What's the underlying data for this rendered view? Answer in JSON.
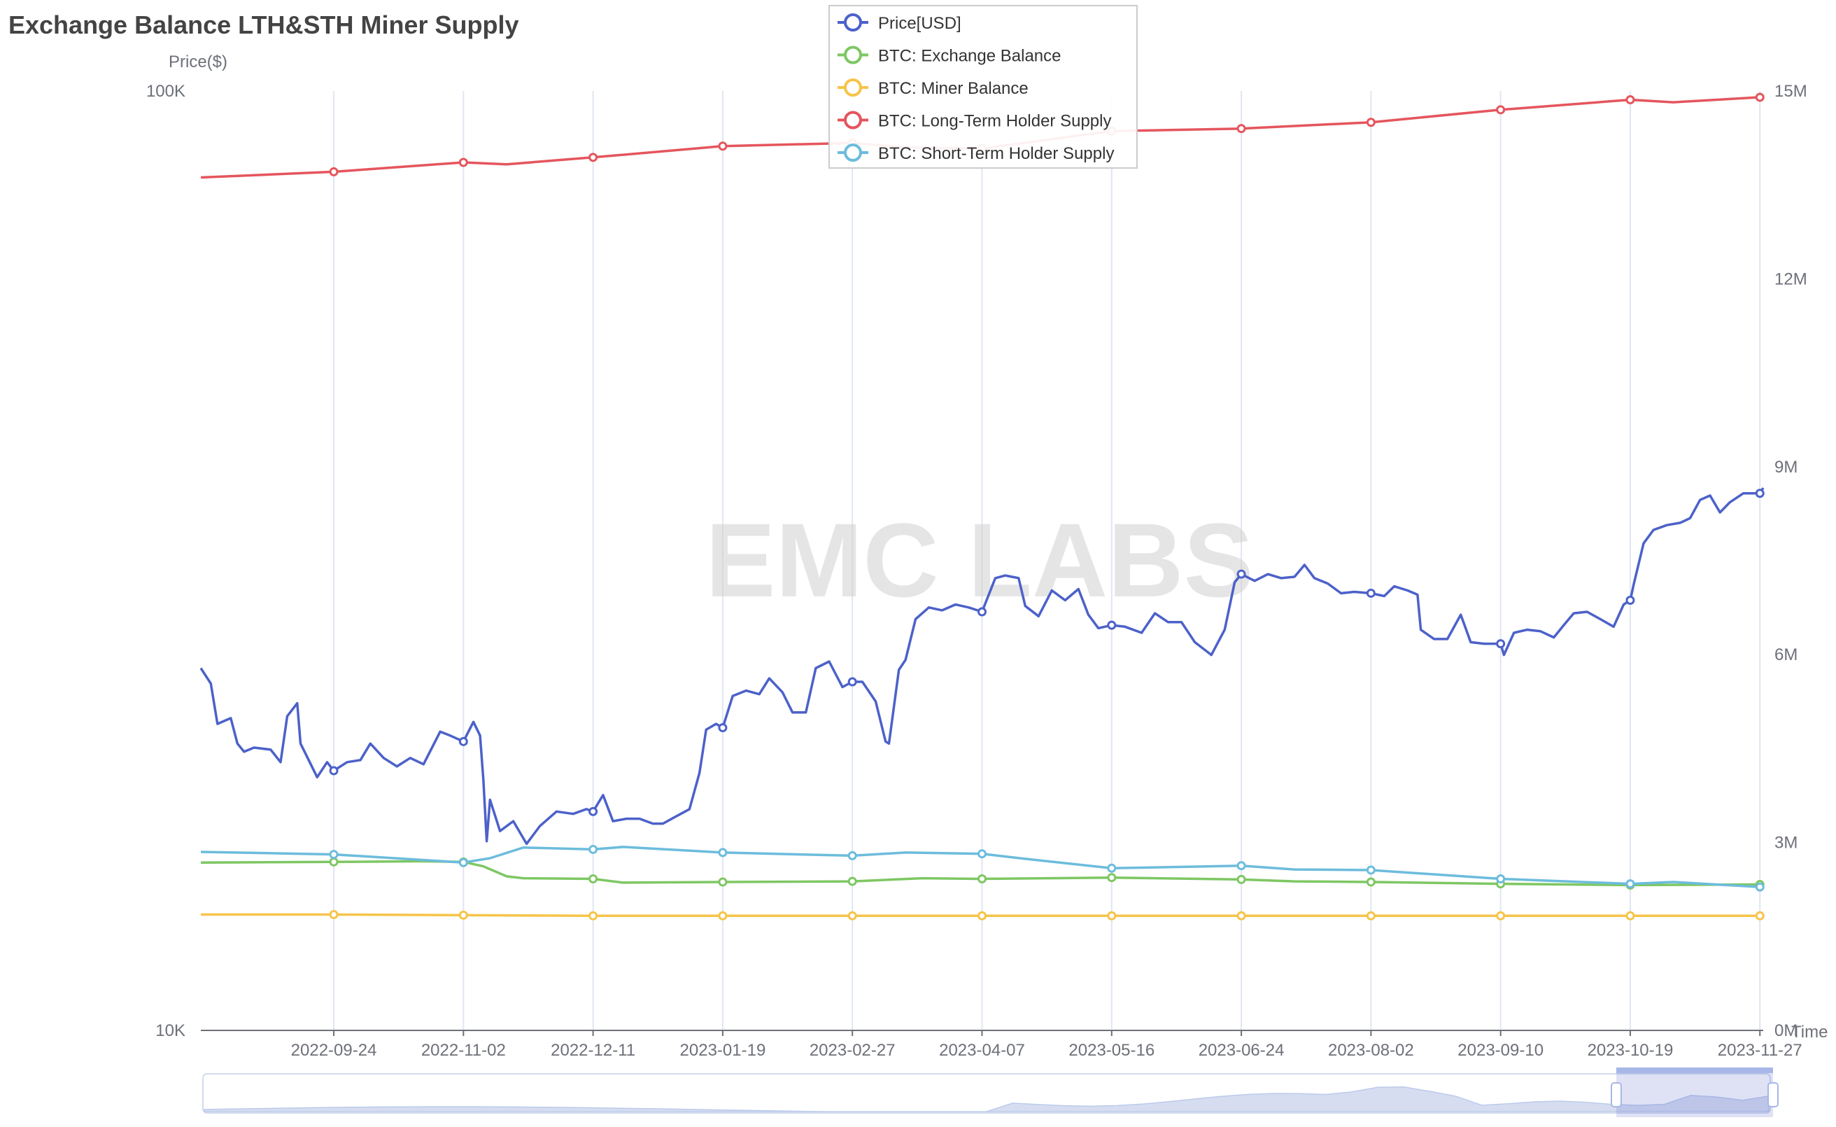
{
  "title": "Exchange Balance LTH&STH Miner Supply",
  "watermark": "EMC LABS",
  "colors": {
    "price": "#4c61c9",
    "exchange": "#7ec763",
    "miner": "#f6c44a",
    "lth": "#e5555d",
    "sth": "#6cbcdc",
    "grid": "#e0e6f1",
    "axis": "#6e7079"
  },
  "chart_data": {
    "type": "line",
    "title": "Exchange Balance LTH&STH Miner Supply",
    "y_left": {
      "label": "Price($)",
      "scale": "log",
      "range": [
        10000,
        100000
      ],
      "tick_labels": [
        "10K",
        "100K"
      ]
    },
    "y_right": {
      "label": "",
      "range": [
        0,
        15000000
      ],
      "tick_labels": [
        "0M",
        "3M",
        "6M",
        "9M",
        "12M",
        "15M"
      ]
    },
    "x": {
      "label": "Time",
      "start": "2022-08-15",
      "end": "2023-11-28",
      "tick_labels": [
        "2022-09-24",
        "2022-11-02",
        "2022-12-11",
        "2023-01-19",
        "2023-02-27",
        "2023-04-07",
        "2023-05-16",
        "2023-06-24",
        "2023-08-02",
        "2023-09-10",
        "2023-10-19",
        "2023-11-27"
      ]
    },
    "grid": "vertical",
    "legend_position": "top-center",
    "series": [
      {
        "name": "Price[USD]",
        "axis": "left",
        "color_key": "price",
        "points": [
          [
            "2022-08-15",
            24300
          ],
          [
            "2022-08-18",
            23400
          ],
          [
            "2022-08-20",
            21200
          ],
          [
            "2022-08-24",
            21500
          ],
          [
            "2022-08-26",
            20200
          ],
          [
            "2022-08-28",
            19800
          ],
          [
            "2022-08-31",
            20000
          ],
          [
            "2022-09-05",
            19900
          ],
          [
            "2022-09-08",
            19300
          ],
          [
            "2022-09-10",
            21600
          ],
          [
            "2022-09-13",
            22300
          ],
          [
            "2022-09-14",
            20200
          ],
          [
            "2022-09-19",
            18600
          ],
          [
            "2022-09-22",
            19300
          ],
          [
            "2022-09-24",
            18900
          ],
          [
            "2022-09-28",
            19300
          ],
          [
            "2022-10-02",
            19400
          ],
          [
            "2022-10-05",
            20200
          ],
          [
            "2022-10-09",
            19500
          ],
          [
            "2022-10-13",
            19100
          ],
          [
            "2022-10-17",
            19500
          ],
          [
            "2022-10-21",
            19200
          ],
          [
            "2022-10-26",
            20800
          ],
          [
            "2022-10-29",
            20600
          ],
          [
            "2022-11-02",
            20300
          ],
          [
            "2022-11-05",
            21300
          ],
          [
            "2022-11-07",
            20600
          ],
          [
            "2022-11-08",
            18500
          ],
          [
            "2022-11-09",
            15900
          ],
          [
            "2022-11-10",
            17600
          ],
          [
            "2022-11-13",
            16300
          ],
          [
            "2022-11-17",
            16700
          ],
          [
            "2022-11-21",
            15800
          ],
          [
            "2022-11-25",
            16500
          ],
          [
            "2022-11-30",
            17100
          ],
          [
            "2022-12-05",
            17000
          ],
          [
            "2022-12-09",
            17200
          ],
          [
            "2022-12-11",
            17100
          ],
          [
            "2022-12-14",
            17800
          ],
          [
            "2022-12-17",
            16700
          ],
          [
            "2022-12-21",
            16800
          ],
          [
            "2022-12-25",
            16800
          ],
          [
            "2022-12-29",
            16600
          ],
          [
            "2023-01-01",
            16600
          ],
          [
            "2023-01-05",
            16900
          ],
          [
            "2023-01-09",
            17200
          ],
          [
            "2023-01-12",
            18800
          ],
          [
            "2023-01-14",
            20900
          ],
          [
            "2023-01-17",
            21200
          ],
          [
            "2023-01-19",
            21000
          ],
          [
            "2023-01-22",
            22700
          ],
          [
            "2023-01-26",
            23000
          ],
          [
            "2023-01-30",
            22800
          ],
          [
            "2023-02-02",
            23700
          ],
          [
            "2023-02-06",
            22900
          ],
          [
            "2023-02-09",
            21800
          ],
          [
            "2023-02-13",
            21800
          ],
          [
            "2023-02-16",
            24300
          ],
          [
            "2023-02-20",
            24700
          ],
          [
            "2023-02-24",
            23200
          ],
          [
            "2023-02-27",
            23500
          ],
          [
            "2023-03-02",
            23500
          ],
          [
            "2023-03-06",
            22400
          ],
          [
            "2023-03-09",
            20300
          ],
          [
            "2023-03-10",
            20200
          ],
          [
            "2023-03-13",
            24200
          ],
          [
            "2023-03-15",
            24800
          ],
          [
            "2023-03-18",
            27400
          ],
          [
            "2023-03-22",
            28200
          ],
          [
            "2023-03-26",
            28000
          ],
          [
            "2023-03-30",
            28400
          ],
          [
            "2023-04-03",
            28200
          ],
          [
            "2023-04-07",
            27900
          ],
          [
            "2023-04-11",
            30300
          ],
          [
            "2023-04-14",
            30500
          ],
          [
            "2023-04-18",
            30300
          ],
          [
            "2023-04-20",
            28300
          ],
          [
            "2023-04-24",
            27600
          ],
          [
            "2023-04-28",
            29400
          ],
          [
            "2023-05-02",
            28700
          ],
          [
            "2023-05-06",
            29500
          ],
          [
            "2023-05-09",
            27700
          ],
          [
            "2023-05-12",
            26800
          ],
          [
            "2023-05-16",
            27000
          ],
          [
            "2023-05-20",
            26900
          ],
          [
            "2023-05-25",
            26500
          ],
          [
            "2023-05-29",
            27800
          ],
          [
            "2023-06-02",
            27200
          ],
          [
            "2023-06-06",
            27200
          ],
          [
            "2023-06-10",
            25900
          ],
          [
            "2023-06-15",
            25100
          ],
          [
            "2023-06-19",
            26700
          ],
          [
            "2023-06-22",
            30000
          ],
          [
            "2023-06-24",
            30600
          ],
          [
            "2023-06-28",
            30100
          ],
          [
            "2023-07-02",
            30600
          ],
          [
            "2023-07-06",
            30300
          ],
          [
            "2023-07-10",
            30400
          ],
          [
            "2023-07-13",
            31300
          ],
          [
            "2023-07-16",
            30300
          ],
          [
            "2023-07-20",
            29900
          ],
          [
            "2023-07-24",
            29200
          ],
          [
            "2023-07-28",
            29300
          ],
          [
            "2023-08-02",
            29200
          ],
          [
            "2023-08-06",
            29000
          ],
          [
            "2023-08-09",
            29700
          ],
          [
            "2023-08-13",
            29400
          ],
          [
            "2023-08-16",
            29100
          ],
          [
            "2023-08-17",
            26700
          ],
          [
            "2023-08-21",
            26100
          ],
          [
            "2023-08-25",
            26100
          ],
          [
            "2023-08-29",
            27700
          ],
          [
            "2023-09-01",
            25900
          ],
          [
            "2023-09-05",
            25800
          ],
          [
            "2023-09-10",
            25800
          ],
          [
            "2023-09-11",
            25100
          ],
          [
            "2023-09-14",
            26500
          ],
          [
            "2023-09-18",
            26700
          ],
          [
            "2023-09-22",
            26600
          ],
          [
            "2023-09-26",
            26200
          ],
          [
            "2023-09-29",
            27000
          ],
          [
            "2023-10-02",
            27800
          ],
          [
            "2023-10-06",
            27900
          ],
          [
            "2023-10-10",
            27400
          ],
          [
            "2023-10-14",
            26900
          ],
          [
            "2023-10-17",
            28400
          ],
          [
            "2023-10-19",
            28700
          ],
          [
            "2023-10-20",
            29800
          ],
          [
            "2023-10-23",
            33000
          ],
          [
            "2023-10-26",
            34100
          ],
          [
            "2023-10-30",
            34500
          ],
          [
            "2023-11-03",
            34700
          ],
          [
            "2023-11-06",
            35100
          ],
          [
            "2023-11-09",
            36700
          ],
          [
            "2023-11-12",
            37100
          ],
          [
            "2023-11-15",
            35600
          ],
          [
            "2023-11-18",
            36500
          ],
          [
            "2023-11-22",
            37300
          ],
          [
            "2023-11-27",
            37300
          ],
          [
            "2023-11-28",
            37800
          ]
        ]
      },
      {
        "name": "BTC: Exchange Balance",
        "axis": "right",
        "color_key": "exchange",
        "points": [
          [
            "2022-08-15",
            2680000
          ],
          [
            "2022-09-24",
            2690000
          ],
          [
            "2022-10-20",
            2700000
          ],
          [
            "2022-11-02",
            2690000
          ],
          [
            "2022-11-08",
            2620000
          ],
          [
            "2022-11-15",
            2460000
          ],
          [
            "2022-11-20",
            2430000
          ],
          [
            "2022-12-11",
            2420000
          ],
          [
            "2022-12-20",
            2360000
          ],
          [
            "2023-01-19",
            2370000
          ],
          [
            "2023-02-27",
            2380000
          ],
          [
            "2023-03-20",
            2430000
          ],
          [
            "2023-04-07",
            2420000
          ],
          [
            "2023-05-16",
            2440000
          ],
          [
            "2023-06-24",
            2410000
          ],
          [
            "2023-07-10",
            2380000
          ],
          [
            "2023-08-02",
            2370000
          ],
          [
            "2023-09-10",
            2340000
          ],
          [
            "2023-10-19",
            2320000
          ],
          [
            "2023-11-27",
            2330000
          ]
        ]
      },
      {
        "name": "BTC: Miner Balance",
        "axis": "right",
        "color_key": "miner",
        "points": [
          [
            "2022-08-15",
            1850000
          ],
          [
            "2022-09-24",
            1850000
          ],
          [
            "2022-11-02",
            1840000
          ],
          [
            "2022-12-11",
            1830000
          ],
          [
            "2023-01-19",
            1830000
          ],
          [
            "2023-02-27",
            1830000
          ],
          [
            "2023-04-07",
            1830000
          ],
          [
            "2023-05-16",
            1830000
          ],
          [
            "2023-06-24",
            1830000
          ],
          [
            "2023-08-02",
            1830000
          ],
          [
            "2023-09-10",
            1830000
          ],
          [
            "2023-10-19",
            1830000
          ],
          [
            "2023-11-27",
            1830000
          ]
        ]
      },
      {
        "name": "BTC: Long-Term Holder Supply",
        "axis": "right",
        "color_key": "lth",
        "points": [
          [
            "2022-08-15",
            13620000
          ],
          [
            "2022-09-24",
            13710000
          ],
          [
            "2022-11-02",
            13860000
          ],
          [
            "2022-11-15",
            13830000
          ],
          [
            "2022-12-11",
            13940000
          ],
          [
            "2023-01-19",
            14120000
          ],
          [
            "2023-02-27",
            14170000
          ],
          [
            "2023-03-15",
            14100000
          ],
          [
            "2023-04-07",
            14080000
          ],
          [
            "2023-05-16",
            14360000
          ],
          [
            "2023-06-24",
            14400000
          ],
          [
            "2023-08-02",
            14500000
          ],
          [
            "2023-09-10",
            14700000
          ],
          [
            "2023-10-19",
            14860000
          ],
          [
            "2023-11-01",
            14820000
          ],
          [
            "2023-11-27",
            14900000
          ]
        ]
      },
      {
        "name": "BTC: Short-Term Holder Supply",
        "axis": "right",
        "color_key": "sth",
        "points": [
          [
            "2022-08-15",
            2850000
          ],
          [
            "2022-09-24",
            2810000
          ],
          [
            "2022-11-02",
            2680000
          ],
          [
            "2022-11-10",
            2750000
          ],
          [
            "2022-11-20",
            2920000
          ],
          [
            "2022-12-11",
            2890000
          ],
          [
            "2022-12-20",
            2930000
          ],
          [
            "2023-01-19",
            2840000
          ],
          [
            "2023-02-27",
            2790000
          ],
          [
            "2023-03-15",
            2840000
          ],
          [
            "2023-04-07",
            2820000
          ],
          [
            "2023-04-20",
            2740000
          ],
          [
            "2023-05-16",
            2590000
          ],
          [
            "2023-06-24",
            2630000
          ],
          [
            "2023-07-10",
            2570000
          ],
          [
            "2023-08-02",
            2560000
          ],
          [
            "2023-09-10",
            2420000
          ],
          [
            "2023-10-19",
            2340000
          ],
          [
            "2023-11-01",
            2370000
          ],
          [
            "2023-11-27",
            2290000
          ]
        ]
      }
    ]
  }
}
